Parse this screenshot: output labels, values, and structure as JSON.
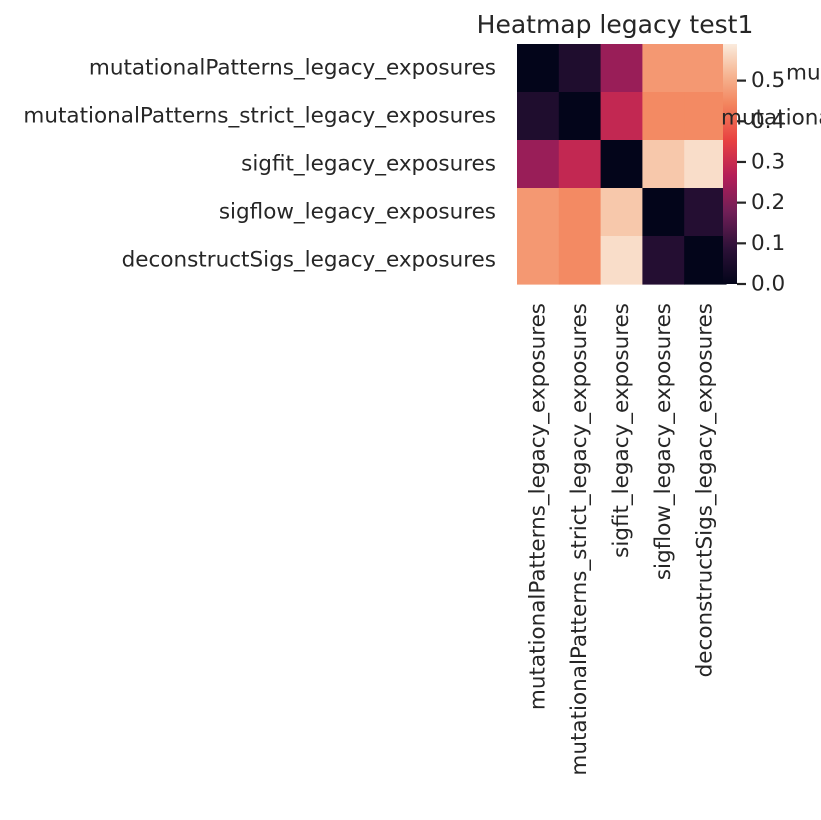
{
  "chart_data": {
    "type": "heatmap",
    "title": "Heatmap legacy test1",
    "row_labels": [
      "mutationalPatterns_legacy_exposures",
      "mutationalPatterns_strict_legacy_exposures",
      "sigfit_legacy_exposures",
      "sigflow_legacy_exposures",
      "deconstructSigs_legacy_exposures"
    ],
    "col_labels": [
      "mutationalPatterns_legacy_exposures",
      "mutationalPatterns_strict_legacy_exposures",
      "sigfit_legacy_exposures",
      "sigflow_legacy_exposures",
      "deconstructSigs_legacy_exposures"
    ],
    "values": [
      [
        0.0,
        0.06,
        0.23,
        0.47,
        0.47
      ],
      [
        0.06,
        0.0,
        0.29,
        0.45,
        0.45
      ],
      [
        0.23,
        0.29,
        0.0,
        0.54,
        0.57
      ],
      [
        0.47,
        0.45,
        0.54,
        0.0,
        0.07
      ],
      [
        0.47,
        0.45,
        0.57,
        0.07,
        0.0
      ]
    ],
    "colormap": "rocket",
    "vmin": 0.0,
    "vmax": 0.59,
    "colorbar_ticks": [
      "0.0",
      "0.1",
      "0.2",
      "0.3",
      "0.4",
      "0.5"
    ],
    "legend_overlap_text": [
      "mu",
      "mutationa"
    ],
    "grid": false
  }
}
